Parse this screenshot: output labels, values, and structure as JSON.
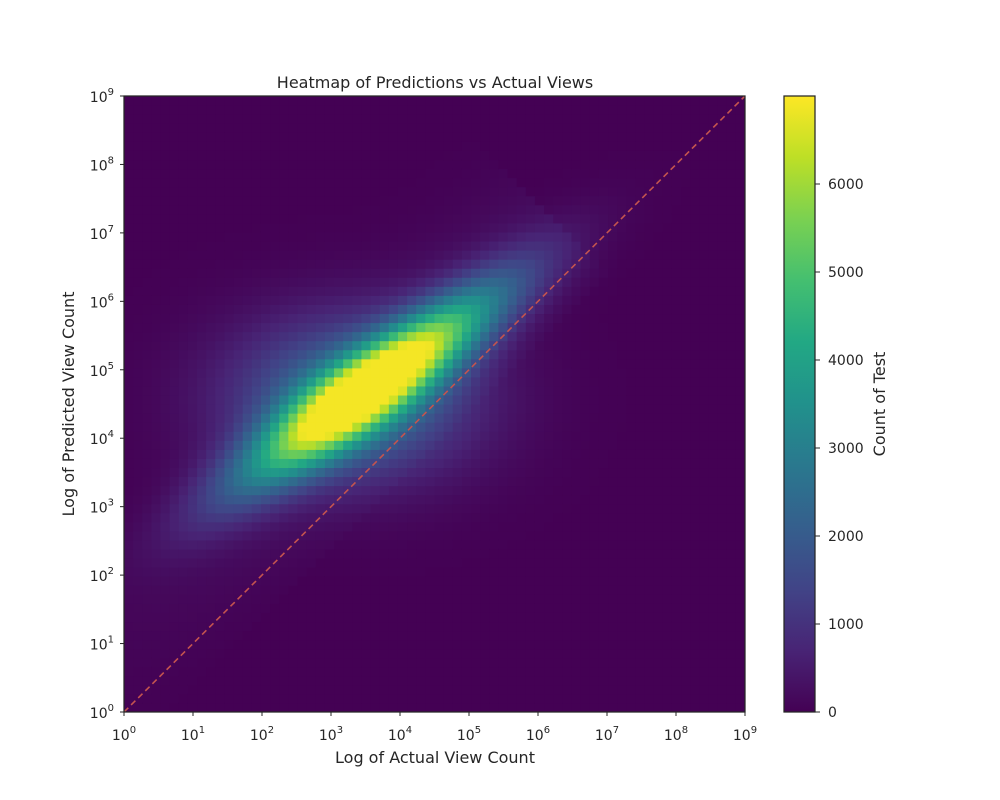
{
  "chart_data": {
    "type": "heatmap",
    "title": "Heatmap of Predictions vs Actual Views",
    "xlabel": "Log of Actual View Count",
    "ylabel": "Log of Predicted View Count",
    "x_scale": "log",
    "y_scale": "log",
    "xlim": [
      1,
      1000000000
    ],
    "ylim": [
      1,
      1000000000
    ],
    "x_ticks": [
      {
        "base": "10",
        "exp": "0"
      },
      {
        "base": "10",
        "exp": "1"
      },
      {
        "base": "10",
        "exp": "2"
      },
      {
        "base": "10",
        "exp": "3"
      },
      {
        "base": "10",
        "exp": "4"
      },
      {
        "base": "10",
        "exp": "5"
      },
      {
        "base": "10",
        "exp": "6"
      },
      {
        "base": "10",
        "exp": "7"
      },
      {
        "base": "10",
        "exp": "8"
      },
      {
        "base": "10",
        "exp": "9"
      }
    ],
    "y_ticks": [
      {
        "base": "10",
        "exp": "0"
      },
      {
        "base": "10",
        "exp": "1"
      },
      {
        "base": "10",
        "exp": "2"
      },
      {
        "base": "10",
        "exp": "3"
      },
      {
        "base": "10",
        "exp": "4"
      },
      {
        "base": "10",
        "exp": "5"
      },
      {
        "base": "10",
        "exp": "6"
      },
      {
        "base": "10",
        "exp": "7"
      },
      {
        "base": "10",
        "exp": "8"
      },
      {
        "base": "10",
        "exp": "9"
      }
    ],
    "colormap": "viridis",
    "colorbar": {
      "label": "Count of Test",
      "range": [
        0,
        7000
      ],
      "ticks": [
        "0",
        "1000",
        "2000",
        "3000",
        "4000",
        "5000",
        "6000"
      ]
    },
    "density_peak": {
      "x": 4000,
      "y": 60000,
      "count": 6900
    },
    "reference_line": {
      "type": "y=x",
      "color": "#c4544f",
      "style": "dashed"
    },
    "grid": false,
    "legend": "none"
  }
}
